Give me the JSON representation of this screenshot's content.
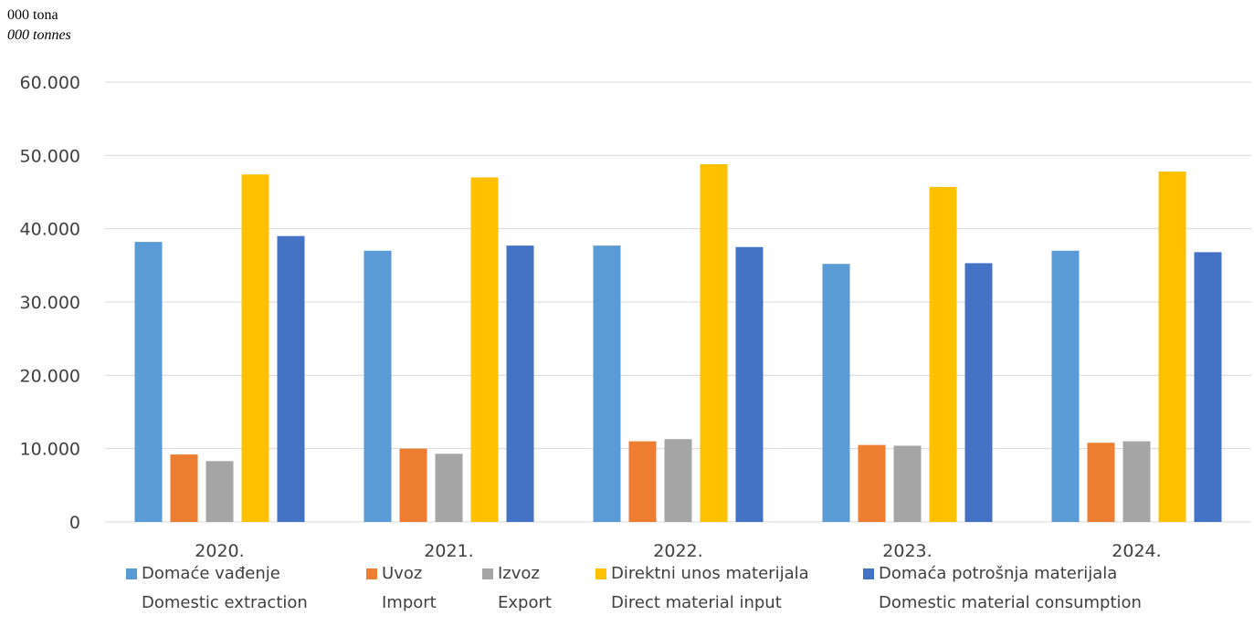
{
  "unit_label": "000 tona",
  "unit_label_en": "000 tonnes",
  "colors": {
    "domestic_extraction": "#5B9BD5",
    "import": "#ED7D31",
    "export": "#A5A5A5",
    "direct_material_input": "#FFC000",
    "domestic_material_consumption": "#4472C4",
    "grid": "#D9D9D9",
    "axis_text": "#404040"
  },
  "chart_data": {
    "type": "bar",
    "categories": [
      "2020.",
      "2021.",
      "2022.",
      "2023.",
      "2024."
    ],
    "ylim": [
      0,
      60000
    ],
    "y_ticks": [
      "0",
      "10.000",
      "20.000",
      "30.000",
      "40.000",
      "50.000",
      "60.000"
    ],
    "y_tick_values": [
      0,
      10000,
      20000,
      30000,
      40000,
      50000,
      60000
    ],
    "grid": true,
    "legend_position": "bottom",
    "series": [
      {
        "key": "domestic_extraction",
        "name": "Domaće vađenje",
        "name_en": "Domestic extraction",
        "values": [
          38200,
          37000,
          37700,
          35200,
          37000
        ]
      },
      {
        "key": "import",
        "name": "Uvoz",
        "name_en": "Import",
        "values": [
          9200,
          10000,
          11000,
          10500,
          10800
        ]
      },
      {
        "key": "export",
        "name": "Izvoz",
        "name_en": "Export",
        "values": [
          8300,
          9300,
          11300,
          10400,
          11000
        ]
      },
      {
        "key": "direct_material_input",
        "name": "Direktni unos materijala",
        "name_en": "Direct material input",
        "values": [
          47400,
          47000,
          48800,
          45700,
          47800
        ]
      },
      {
        "key": "domestic_material_consumption",
        "name": "Domaća potrošnja materijala",
        "name_en": "Domestic material consumption",
        "values": [
          39000,
          37700,
          37500,
          35300,
          36800
        ]
      }
    ]
  }
}
